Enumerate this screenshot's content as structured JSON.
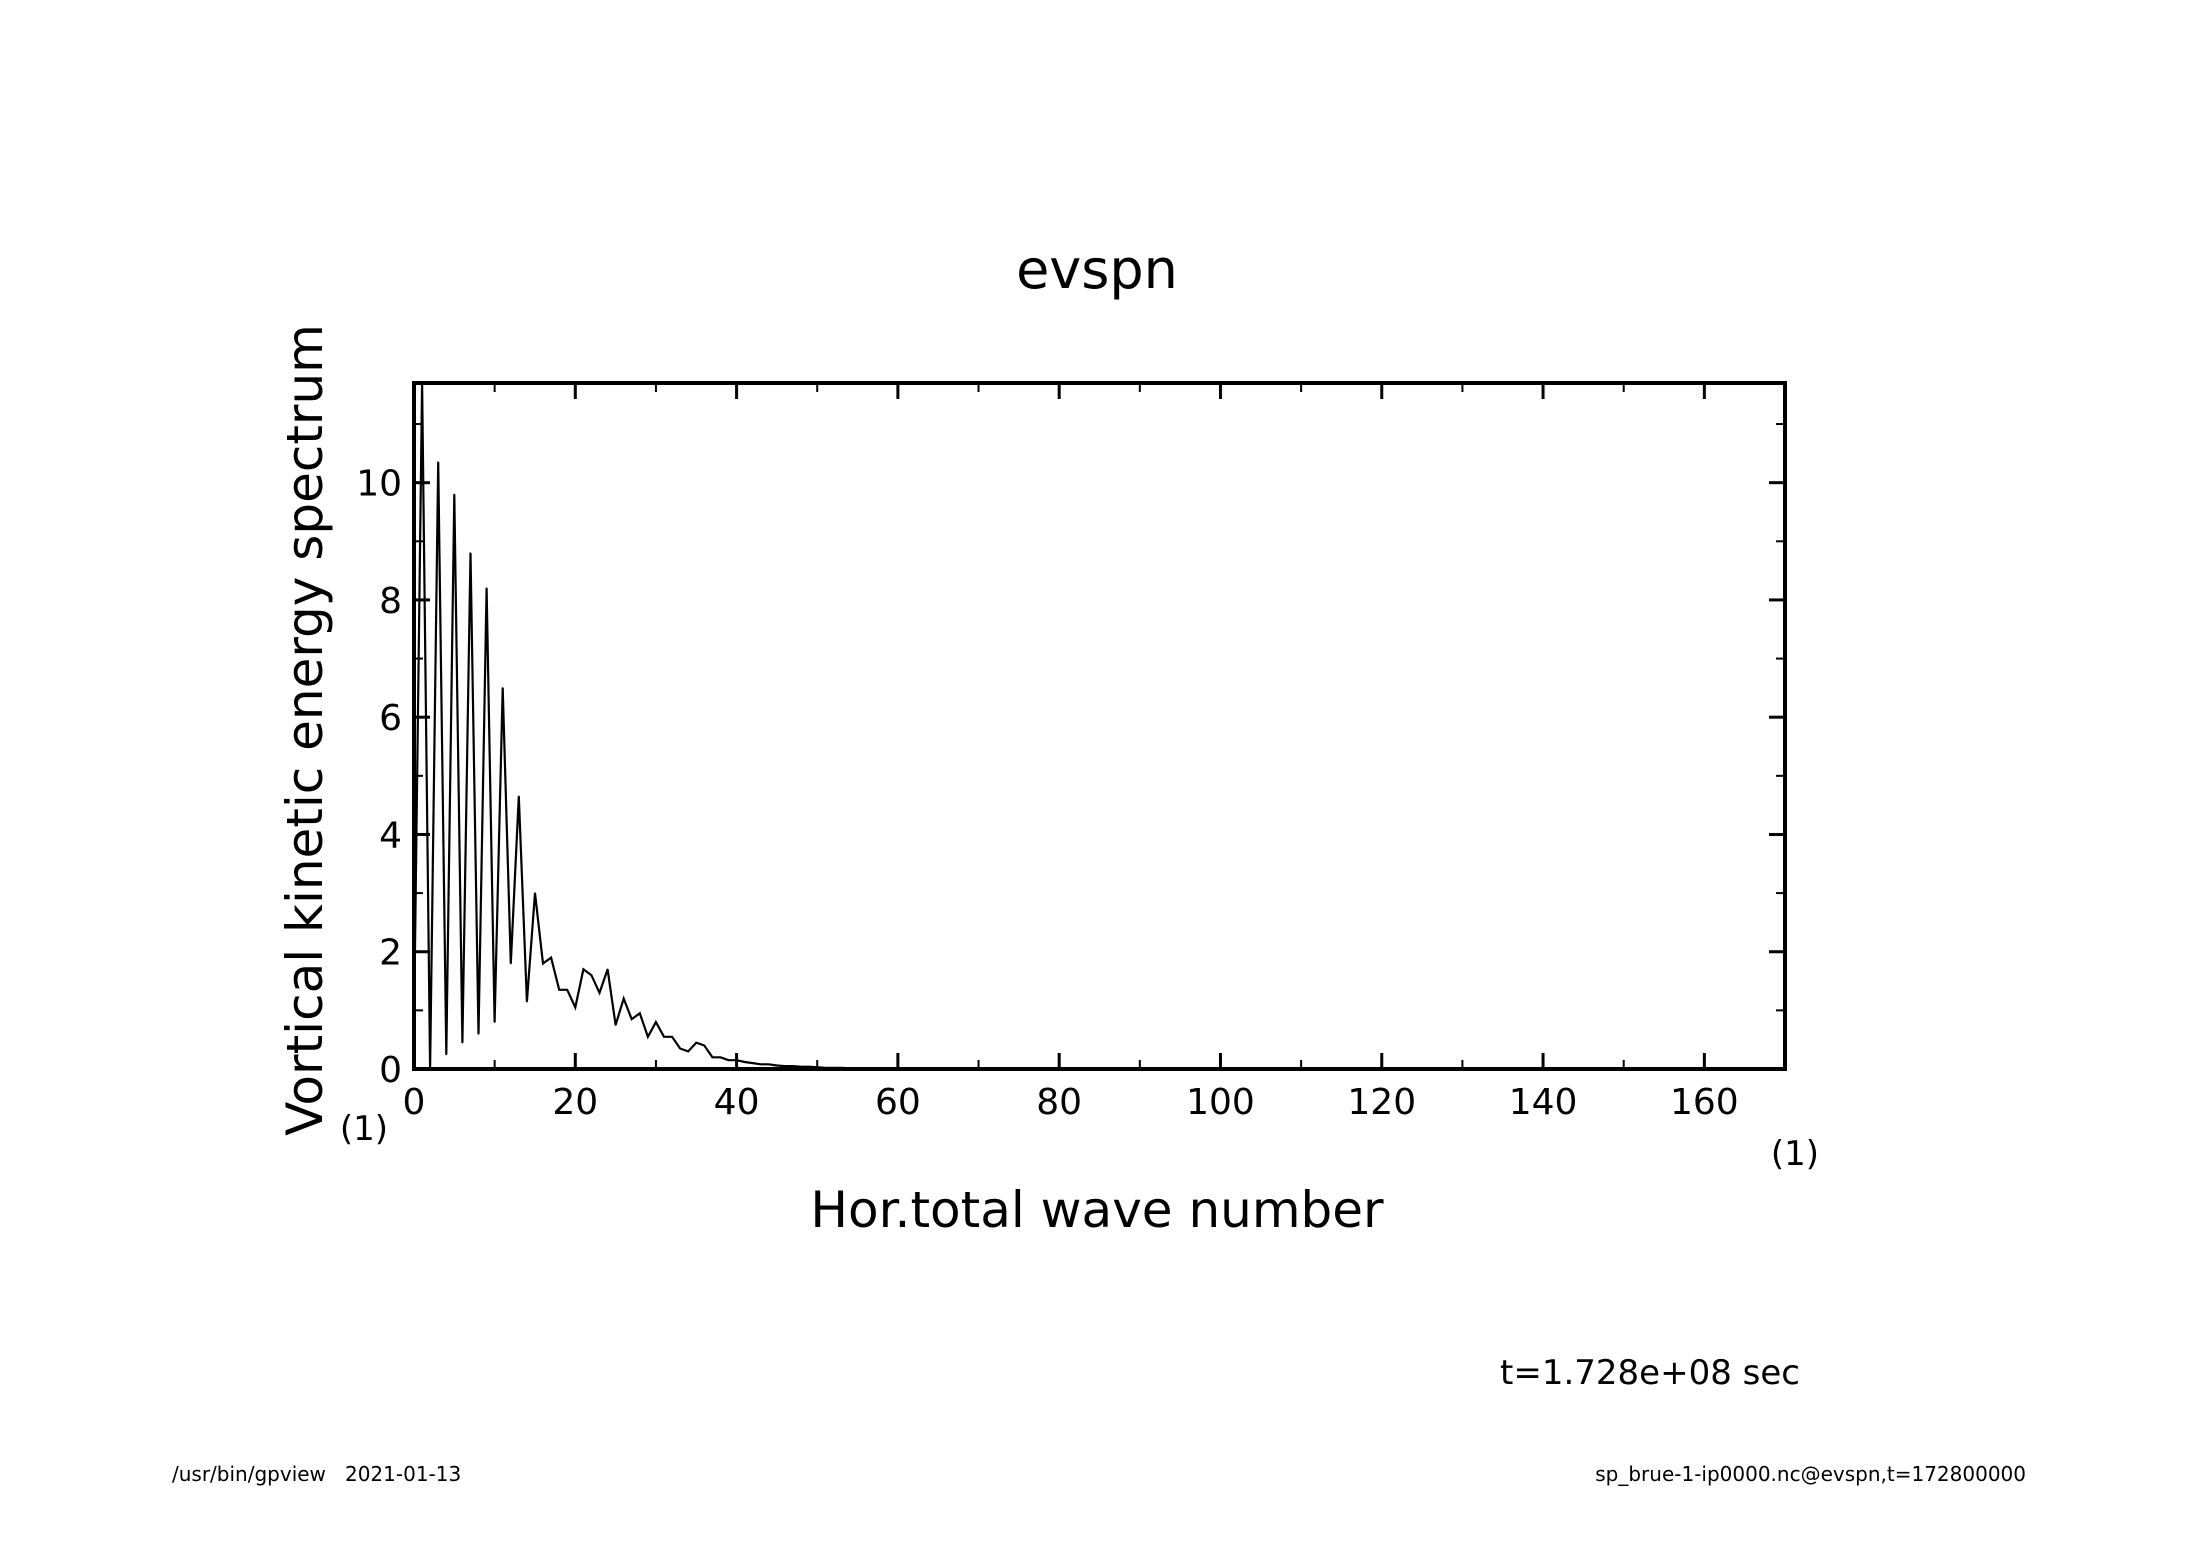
{
  "chart_data": {
    "type": "line",
    "title": "evspn",
    "xlabel": "Hor.total wave number",
    "ylabel": "Vortical kinetic energy spectrum",
    "x_unit": "(1)",
    "y_unit": "(1)",
    "xlim": [
      0,
      170
    ],
    "ylim": [
      0,
      11.7
    ],
    "x_ticks": [
      0,
      20,
      40,
      60,
      80,
      100,
      120,
      140,
      160
    ],
    "x_tick_labels": [
      "0",
      "20",
      "40",
      "60",
      "80",
      "100",
      "120",
      "140",
      "160"
    ],
    "y_ticks": [
      0,
      2,
      4,
      6,
      8,
      10
    ],
    "y_tick_labels": [
      "0",
      "2",
      "4",
      "6",
      "8",
      "10"
    ],
    "x_minor_step": 10,
    "y_minor_step": 1,
    "grid": false,
    "legend": false,
    "series": [
      {
        "x": [
          0,
          1,
          2,
          3,
          4,
          5,
          6,
          7,
          8,
          9,
          10,
          11,
          12,
          13,
          14,
          15,
          16,
          17,
          18,
          19,
          20,
          21,
          22,
          23,
          24,
          25,
          26,
          27,
          28,
          29,
          30,
          31,
          32,
          33,
          34,
          35,
          36,
          37,
          38,
          39,
          40,
          41,
          42,
          43,
          44,
          45,
          46,
          47,
          48,
          49,
          50,
          51,
          52,
          53,
          54,
          55,
          56,
          57,
          58,
          59,
          60
        ],
        "values": [
          0.7,
          11.7,
          0,
          10.35,
          0.25,
          9.8,
          0.45,
          8.8,
          0.6,
          8.2,
          0.8,
          6.5,
          1.8,
          4.65,
          1.15,
          3.0,
          1.8,
          1.9,
          1.35,
          1.35,
          1.05,
          1.7,
          1.6,
          1.3,
          1.7,
          0.75,
          1.2,
          0.85,
          0.95,
          0.55,
          0.8,
          0.55,
          0.55,
          0.35,
          0.3,
          0.45,
          0.4,
          0.2,
          0.2,
          0.15,
          0.15,
          0.12,
          0.1,
          0.08,
          0.08,
          0.06,
          0.05,
          0.05,
          0.04,
          0.04,
          0.03,
          0.02,
          0.02,
          0.02,
          0.01,
          0.01,
          0.01,
          0.01,
          0.0,
          0.0,
          0.0
        ]
      }
    ]
  },
  "annotation": "t=1.728e+08 sec",
  "footer": {
    "left": "/usr/bin/gpview   2021-01-13",
    "right": "sp_brue-1-ip0000.nc@evspn,t=172800000"
  }
}
